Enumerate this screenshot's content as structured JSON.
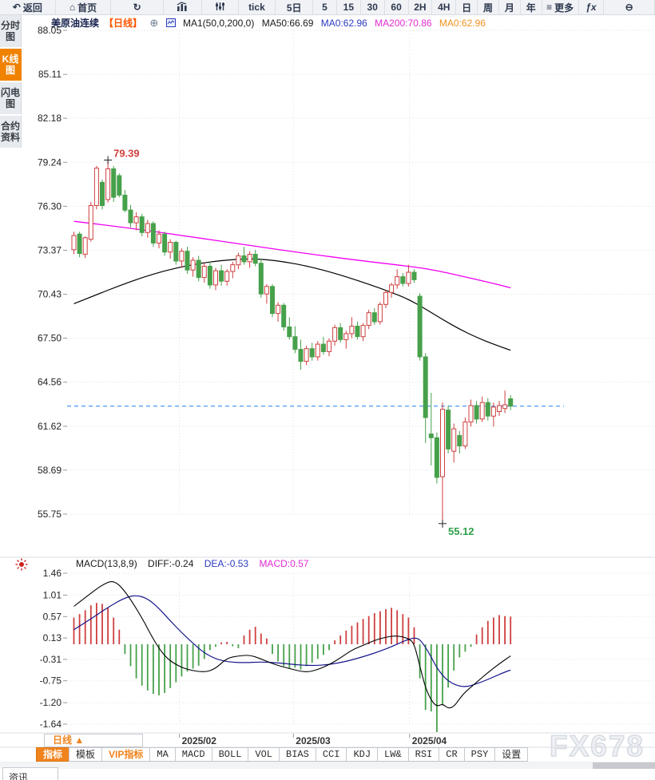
{
  "topbar": {
    "items": [
      {
        "name": "back",
        "icon": "back",
        "label": "返回",
        "w": 70
      },
      {
        "name": "home",
        "icon": "home",
        "label": "首页",
        "w": 70
      },
      {
        "name": "refresh",
        "icon": "refresh",
        "label": "",
        "w": 66
      },
      {
        "name": "bar-chart",
        "icon": "bar_chart",
        "label": "",
        "w": 48
      },
      {
        "name": "sliders",
        "icon": "sliders",
        "label": "",
        "w": 46
      },
      {
        "name": "tick",
        "icon": "",
        "label": "tick",
        "w": 47
      },
      {
        "name": "5d",
        "icon": "",
        "label": "5日",
        "w": 47
      },
      {
        "name": "5min",
        "icon": "",
        "label": "5",
        "w": 30
      },
      {
        "name": "15min",
        "icon": "",
        "label": "15",
        "w": 30
      },
      {
        "name": "30min",
        "icon": "",
        "label": "30",
        "w": 30
      },
      {
        "name": "60min",
        "icon": "",
        "label": "60",
        "w": 30
      },
      {
        "name": "2h",
        "icon": "",
        "label": "2H",
        "w": 30
      },
      {
        "name": "4h",
        "icon": "",
        "label": "4H",
        "w": 30
      },
      {
        "name": "day",
        "icon": "",
        "label": "日",
        "w": 27
      },
      {
        "name": "week",
        "icon": "",
        "label": "周",
        "w": 27
      },
      {
        "name": "month",
        "icon": "",
        "label": "月",
        "w": 27
      },
      {
        "name": "year",
        "icon": "",
        "label": "年",
        "w": 27
      },
      {
        "name": "more",
        "icon": "more",
        "label": "更多",
        "w": 46
      },
      {
        "name": "fx",
        "icon": "fx",
        "label": "",
        "w": 32
      },
      {
        "name": "zoom-out",
        "icon": "zoom_out",
        "label": "",
        "w": 64
      }
    ]
  },
  "icons": {
    "back": "↶",
    "home": "⌂",
    "refresh": "↻",
    "more": "≡",
    "fx": "ƒx",
    "zoom_out": "⊖",
    "circle_plus": "⊕"
  },
  "sidebar": {
    "items": [
      {
        "name": "time-chart",
        "label": "分时图",
        "active": false
      },
      {
        "name": "kline-chart",
        "label": "K线图",
        "active": true
      },
      {
        "name": "lightning-chart",
        "label": "闪电图",
        "active": false
      },
      {
        "name": "contract-info",
        "label": "合约资料",
        "active": false
      }
    ]
  },
  "chart_header": {
    "symbol": "美原油连续",
    "period": "【日线】",
    "ma_settings": "MA1(50,0,200,0)",
    "ma50": "MA50:66.69",
    "ma0_blue": "MA0:62.96",
    "ma200": "MA200:70.86",
    "ma0_orange": "MA0:62.96"
  },
  "macd_header": {
    "title": "MACD(13,8,9)",
    "diff": "DIFF:-0.24",
    "dea": "DEA:-0.53",
    "macd": "MACD:0.57"
  },
  "period_box": "日线 ▲",
  "bottom_tabs": [
    {
      "name": "indicator",
      "label": "指标",
      "state": "active",
      "mono": false
    },
    {
      "name": "template",
      "label": "模板",
      "state": "",
      "mono": false
    },
    {
      "name": "vip-indicator",
      "label": "VIP指标",
      "state": "vip",
      "mono": false
    },
    {
      "name": "ma",
      "label": "MA",
      "state": "",
      "mono": true
    },
    {
      "name": "macd",
      "label": "MACD",
      "state": "",
      "mono": true
    },
    {
      "name": "boll",
      "label": "BOLL",
      "state": "",
      "mono": true
    },
    {
      "name": "vol",
      "label": "VOL",
      "state": "",
      "mono": true
    },
    {
      "name": "bias",
      "label": "BIAS",
      "state": "",
      "mono": true
    },
    {
      "name": "cci",
      "label": "CCI",
      "state": "",
      "mono": true
    },
    {
      "name": "kdj",
      "label": "KDJ",
      "state": "",
      "mono": true
    },
    {
      "name": "lw",
      "label": "LW&",
      "state": "",
      "mono": true
    },
    {
      "name": "rsi",
      "label": "RSI",
      "state": "",
      "mono": true
    },
    {
      "name": "cr",
      "label": "CR",
      "state": "",
      "mono": true
    },
    {
      "name": "psy",
      "label": "PSY",
      "state": "",
      "mono": true
    },
    {
      "name": "settings",
      "label": "设置",
      "state": "",
      "mono": false
    }
  ],
  "watermark": "FX678",
  "news_tab": "资讯",
  "colors": {
    "up": "#cf3f3f",
    "down": "#47a14b",
    "ma50": "#000000",
    "ma200": "#f000f0",
    "diff": "#000000",
    "dea": "#16168c",
    "price_line": "#1e7ef0",
    "high_label": "#d23f3f",
    "low_label": "#2fa04a",
    "grid": "#e7e7e7",
    "axis_text": "#222222"
  },
  "chart_data": {
    "type": "candlestick+macd",
    "title": "美原油连续 日线",
    "y_ticks_main": [
      88.05,
      85.11,
      82.18,
      79.24,
      76.3,
      73.37,
      70.43,
      67.5,
      64.56,
      61.62,
      58.69,
      55.75
    ],
    "y_ticks_macd": [
      1.46,
      1.01,
      0.57,
      0.13,
      -0.31,
      -0.75,
      -1.2,
      -1.64
    ],
    "months": [
      {
        "label": "2025/02",
        "i": 18.6
      },
      {
        "label": "2025/03",
        "i": 38.7
      },
      {
        "label": "2025/04",
        "i": 59.2
      }
    ],
    "last_price": 62.96,
    "high_marker": {
      "i": 6,
      "price": 79.39,
      "label": "79.39"
    },
    "low_marker": {
      "i": 65,
      "price": 55.12,
      "label": "55.12"
    },
    "candles": [
      [
        73.4,
        74.6,
        73.1,
        74.35
      ],
      [
        74.45,
        74.6,
        72.9,
        73.15
      ],
      [
        73.1,
        74.3,
        72.85,
        74.2
      ],
      [
        74.1,
        76.6,
        73.95,
        76.35
      ],
      [
        76.35,
        79.0,
        76.1,
        78.85
      ],
      [
        77.9,
        78.1,
        76.1,
        76.35
      ],
      [
        76.75,
        79.39,
        76.55,
        78.8
      ],
      [
        78.8,
        79.0,
        76.6,
        76.9
      ],
      [
        78.35,
        78.5,
        76.9,
        77.05
      ],
      [
        77.05,
        77.4,
        75.9,
        76.05
      ],
      [
        76.05,
        76.4,
        74.9,
        75.2
      ],
      [
        75.2,
        75.9,
        74.7,
        75.6
      ],
      [
        75.6,
        75.8,
        74.3,
        74.55
      ],
      [
        74.55,
        75.4,
        74.2,
        75.15
      ],
      [
        75.15,
        75.3,
        73.6,
        73.85
      ],
      [
        73.85,
        74.7,
        73.5,
        74.45
      ],
      [
        74.45,
        74.6,
        73.0,
        73.25
      ],
      [
        73.25,
        74.1,
        72.8,
        73.9
      ],
      [
        73.9,
        74.0,
        72.4,
        72.65
      ],
      [
        72.65,
        73.5,
        72.2,
        73.3
      ],
      [
        73.3,
        73.6,
        71.8,
        72.05
      ],
      [
        72.05,
        72.9,
        71.6,
        72.7
      ],
      [
        72.7,
        73.0,
        71.3,
        71.55
      ],
      [
        71.55,
        72.5,
        71.2,
        72.3
      ],
      [
        72.3,
        72.6,
        70.8,
        71.05
      ],
      [
        71.05,
        72.2,
        70.7,
        72.0
      ],
      [
        72.0,
        72.4,
        71.0,
        71.3
      ],
      [
        71.3,
        72.1,
        71.0,
        71.95
      ],
      [
        71.95,
        72.6,
        71.5,
        72.4
      ],
      [
        72.4,
        73.2,
        72.1,
        73.0
      ],
      [
        73.0,
        73.6,
        72.4,
        72.6
      ],
      [
        72.6,
        73.3,
        72.2,
        73.1
      ],
      [
        73.1,
        73.4,
        72.3,
        72.5
      ],
      [
        72.5,
        72.8,
        70.2,
        70.45
      ],
      [
        70.45,
        71.1,
        69.8,
        70.95
      ],
      [
        70.95,
        71.1,
        68.9,
        69.15
      ],
      [
        69.15,
        69.9,
        68.6,
        69.7
      ],
      [
        69.7,
        69.85,
        68.0,
        68.25
      ],
      [
        68.25,
        68.9,
        67.4,
        67.6
      ],
      [
        67.6,
        68.3,
        66.5,
        66.75
      ],
      [
        66.75,
        67.4,
        65.4,
        65.95
      ],
      [
        65.95,
        67.0,
        65.7,
        66.8
      ],
      [
        66.8,
        67.2,
        66.0,
        66.25
      ],
      [
        66.25,
        67.3,
        66.0,
        67.1
      ],
      [
        67.1,
        67.6,
        66.4,
        66.6
      ],
      [
        66.6,
        67.5,
        66.3,
        67.3
      ],
      [
        67.3,
        68.4,
        67.0,
        68.2
      ],
      [
        68.2,
        68.5,
        67.2,
        67.4
      ],
      [
        67.4,
        68.0,
        66.8,
        67.8
      ],
      [
        67.8,
        68.9,
        67.5,
        68.3
      ],
      [
        68.3,
        68.6,
        67.4,
        67.6
      ],
      [
        67.6,
        68.5,
        67.3,
        68.35
      ],
      [
        68.35,
        69.4,
        68.1,
        69.2
      ],
      [
        69.2,
        69.5,
        68.4,
        68.6
      ],
      [
        68.6,
        69.9,
        68.4,
        69.75
      ],
      [
        69.75,
        70.7,
        69.5,
        70.55
      ],
      [
        70.55,
        71.2,
        70.2,
        71.05
      ],
      [
        71.05,
        72.1,
        70.8,
        71.6
      ],
      [
        71.6,
        71.85,
        70.95,
        71.15
      ],
      [
        71.15,
        72.4,
        70.95,
        71.9
      ],
      [
        71.9,
        72.1,
        71.2,
        71.4
      ],
      [
        70.3,
        70.5,
        66.0,
        66.25
      ],
      [
        66.25,
        66.5,
        60.5,
        62.2
      ],
      [
        61.1,
        63.85,
        59.0,
        60.85
      ],
      [
        60.85,
        61.2,
        57.8,
        58.2
      ],
      [
        58.25,
        63.2,
        55.12,
        62.75
      ],
      [
        62.7,
        63.0,
        59.8,
        60.1
      ],
      [
        59.95,
        61.8,
        59.2,
        61.45
      ],
      [
        61.0,
        61.3,
        59.8,
        60.3
      ],
      [
        60.3,
        62.2,
        60.1,
        61.9
      ],
      [
        61.9,
        63.4,
        61.6,
        63.0
      ],
      [
        63.0,
        63.3,
        61.8,
        62.1
      ],
      [
        62.1,
        63.6,
        61.9,
        63.2
      ],
      [
        63.2,
        63.5,
        62.0,
        62.3
      ],
      [
        62.3,
        63.2,
        61.6,
        62.9
      ],
      [
        62.6,
        63.3,
        62.3,
        63.0
      ],
      [
        62.8,
        64.0,
        62.5,
        63.05
      ],
      [
        63.45,
        63.7,
        62.7,
        62.96
      ]
    ],
    "ma50": [
      [
        0,
        69.8
      ],
      [
        4,
        70.4
      ],
      [
        8,
        71.0
      ],
      [
        12,
        71.55
      ],
      [
        16,
        72.0
      ],
      [
        20,
        72.35
      ],
      [
        24,
        72.6
      ],
      [
        28,
        72.75
      ],
      [
        31,
        72.8
      ],
      [
        34,
        72.75
      ],
      [
        37,
        72.6
      ],
      [
        40,
        72.4
      ],
      [
        44,
        72.05
      ],
      [
        48,
        71.6
      ],
      [
        52,
        71.1
      ],
      [
        56,
        70.55
      ],
      [
        59,
        70.1
      ],
      [
        62,
        69.45
      ],
      [
        65,
        68.75
      ],
      [
        68,
        68.1
      ],
      [
        71,
        67.55
      ],
      [
        74,
        67.1
      ],
      [
        77,
        66.69
      ]
    ],
    "ma200": [
      [
        0,
        75.3
      ],
      [
        10,
        74.85
      ],
      [
        20,
        74.3
      ],
      [
        30,
        73.75
      ],
      [
        40,
        73.2
      ],
      [
        50,
        72.7
      ],
      [
        58,
        72.35
      ],
      [
        62,
        72.15
      ],
      [
        66,
        71.85
      ],
      [
        70,
        71.5
      ],
      [
        74,
        71.15
      ],
      [
        77,
        70.86
      ]
    ],
    "macd": {
      "hist": [
        0.55,
        0.62,
        0.7,
        0.8,
        0.85,
        0.83,
        0.75,
        0.55,
        0.3,
        -0.2,
        -0.45,
        -0.7,
        -0.85,
        -0.95,
        -1.02,
        -1.05,
        -1.0,
        -0.9,
        -0.78,
        -0.66,
        -0.56,
        -0.5,
        -0.44,
        -0.3,
        -0.12,
        -0.05,
        0.04,
        0.05,
        -0.04,
        -0.08,
        0.18,
        0.3,
        0.36,
        0.22,
        0.12,
        -0.2,
        -0.35,
        -0.45,
        -0.5,
        -0.48,
        -0.52,
        -0.45,
        -0.38,
        -0.3,
        -0.22,
        -0.12,
        0.08,
        0.18,
        0.28,
        0.38,
        0.45,
        0.52,
        0.58,
        0.64,
        0.68,
        0.72,
        0.75,
        0.7,
        0.62,
        0.55,
        0.35,
        -0.7,
        -1.35,
        -1.38,
        -1.84,
        -1.24,
        -0.89,
        -0.54,
        -0.27,
        -0.15,
        -0.05,
        0.2,
        0.35,
        0.48,
        0.55,
        0.6,
        0.58,
        0.57
      ],
      "diff": [
        [
          0,
          0.78
        ],
        [
          3,
          1.05
        ],
        [
          5,
          1.22
        ],
        [
          7,
          1.32
        ],
        [
          9,
          1.1
        ],
        [
          12,
          0.55
        ],
        [
          14,
          0.1
        ],
        [
          16,
          -0.25
        ],
        [
          18,
          -0.42
        ],
        [
          20,
          -0.52
        ],
        [
          23,
          -0.58
        ],
        [
          25,
          -0.5
        ],
        [
          27,
          -0.28
        ],
        [
          29,
          -0.24
        ],
        [
          31,
          -0.22
        ],
        [
          33,
          -0.3
        ],
        [
          35,
          -0.4
        ],
        [
          38,
          -0.5
        ],
        [
          41,
          -0.58
        ],
        [
          43,
          -0.52
        ],
        [
          45,
          -0.42
        ],
        [
          47,
          -0.28
        ],
        [
          49,
          -0.12
        ],
        [
          51,
          -0.02
        ],
        [
          53,
          0.08
        ],
        [
          55,
          0.15
        ],
        [
          57,
          0.18
        ],
        [
          59,
          0.12
        ],
        [
          60,
          0.02
        ],
        [
          61,
          -0.45
        ],
        [
          62,
          -0.9
        ],
        [
          63,
          -1.15
        ],
        [
          64,
          -1.28
        ],
        [
          65,
          -1.22
        ],
        [
          66,
          -1.32
        ],
        [
          67,
          -1.28
        ],
        [
          68,
          -1.12
        ],
        [
          69,
          -0.98
        ],
        [
          71,
          -0.78
        ],
        [
          73,
          -0.58
        ],
        [
          75,
          -0.4
        ],
        [
          77,
          -0.24
        ]
      ],
      "dea": [
        [
          0,
          0.3
        ],
        [
          3,
          0.52
        ],
        [
          6,
          0.76
        ],
        [
          9,
          0.96
        ],
        [
          11,
          1.01
        ],
        [
          13,
          0.94
        ],
        [
          15,
          0.74
        ],
        [
          17,
          0.48
        ],
        [
          19,
          0.24
        ],
        [
          21,
          0.02
        ],
        [
          23,
          -0.18
        ],
        [
          25,
          -0.3
        ],
        [
          27,
          -0.36
        ],
        [
          30,
          -0.38
        ],
        [
          33,
          -0.36
        ],
        [
          36,
          -0.38
        ],
        [
          39,
          -0.42
        ],
        [
          42,
          -0.44
        ],
        [
          45,
          -0.42
        ],
        [
          48,
          -0.35
        ],
        [
          50,
          -0.29
        ],
        [
          52,
          -0.22
        ],
        [
          54,
          -0.14
        ],
        [
          56,
          -0.05
        ],
        [
          58,
          0.06
        ],
        [
          60,
          0.14
        ],
        [
          61,
          0.1
        ],
        [
          62,
          -0.06
        ],
        [
          63,
          -0.26
        ],
        [
          64,
          -0.48
        ],
        [
          65,
          -0.64
        ],
        [
          66,
          -0.75
        ],
        [
          67,
          -0.82
        ],
        [
          68,
          -0.86
        ],
        [
          69,
          -0.87
        ],
        [
          70,
          -0.85
        ],
        [
          72,
          -0.77
        ],
        [
          74,
          -0.67
        ],
        [
          76,
          -0.57
        ],
        [
          77,
          -0.53
        ]
      ]
    }
  }
}
